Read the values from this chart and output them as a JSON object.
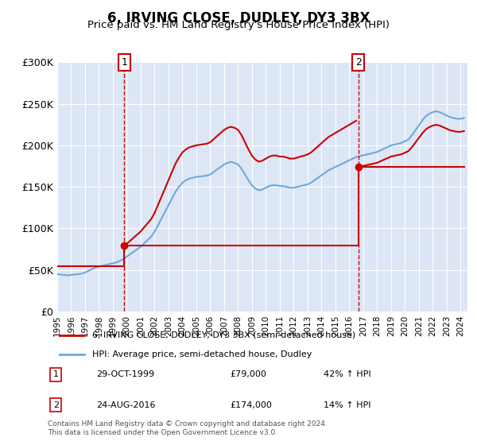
{
  "title": "6, IRVING CLOSE, DUDLEY, DY3 3BX",
  "subtitle": "Price paid vs. HM Land Registry's House Price Index (HPI)",
  "xlabel": "",
  "ylabel": "",
  "ylim": [
    0,
    300000
  ],
  "yticks": [
    0,
    50000,
    100000,
    150000,
    200000,
    250000,
    300000
  ],
  "ytick_labels": [
    "£0",
    "£50K",
    "£100K",
    "£150K",
    "£200K",
    "£250K",
    "£300K"
  ],
  "xlim_start": 1995.0,
  "xlim_end": 2024.5,
  "plot_bg_color": "#dce6f5",
  "fig_bg_color": "#ffffff",
  "grid_color": "#ffffff",
  "sale1_year": 1999.83,
  "sale1_price": 79000,
  "sale1_label": "29-OCT-1999",
  "sale1_amount": "£79,000",
  "sale1_hpi": "42% ↑ HPI",
  "sale2_year": 2016.65,
  "sale2_price": 174000,
  "sale2_label": "24-AUG-2016",
  "sale2_amount": "£174,000",
  "sale2_hpi": "14% ↑ HPI",
  "hpi_color": "#6fa8dc",
  "price_color": "#cc0000",
  "marker_color": "#cc0000",
  "legend_label1": "6, IRVING CLOSE, DUDLEY, DY3 3BX (semi-detached house)",
  "legend_label2": "HPI: Average price, semi-detached house, Dudley",
  "footnote": "Contains HM Land Registry data © Crown copyright and database right 2024.\nThis data is licensed under the Open Government Licence v3.0.",
  "hpi_data_x": [
    1995.0,
    1995.25,
    1995.5,
    1995.75,
    1996.0,
    1996.25,
    1996.5,
    1996.75,
    1997.0,
    1997.25,
    1997.5,
    1997.75,
    1998.0,
    1998.25,
    1998.5,
    1998.75,
    1999.0,
    1999.25,
    1999.5,
    1999.75,
    2000.0,
    2000.25,
    2000.5,
    2000.75,
    2001.0,
    2001.25,
    2001.5,
    2001.75,
    2002.0,
    2002.25,
    2002.5,
    2002.75,
    2003.0,
    2003.25,
    2003.5,
    2003.75,
    2004.0,
    2004.25,
    2004.5,
    2004.75,
    2005.0,
    2005.25,
    2005.5,
    2005.75,
    2006.0,
    2006.25,
    2006.5,
    2006.75,
    2007.0,
    2007.25,
    2007.5,
    2007.75,
    2008.0,
    2008.25,
    2008.5,
    2008.75,
    2009.0,
    2009.25,
    2009.5,
    2009.75,
    2010.0,
    2010.25,
    2010.5,
    2010.75,
    2011.0,
    2011.25,
    2011.5,
    2011.75,
    2012.0,
    2012.25,
    2012.5,
    2012.75,
    2013.0,
    2013.25,
    2013.5,
    2013.75,
    2014.0,
    2014.25,
    2014.5,
    2014.75,
    2015.0,
    2015.25,
    2015.5,
    2015.75,
    2016.0,
    2016.25,
    2016.5,
    2016.75,
    2017.0,
    2017.25,
    2017.5,
    2017.75,
    2018.0,
    2018.25,
    2018.5,
    2018.75,
    2019.0,
    2019.25,
    2019.5,
    2019.75,
    2020.0,
    2020.25,
    2020.5,
    2020.75,
    2021.0,
    2021.25,
    2021.5,
    2021.75,
    2022.0,
    2022.25,
    2022.5,
    2022.75,
    2023.0,
    2023.25,
    2023.5,
    2023.75,
    2024.0,
    2024.25
  ],
  "hpi_data_y": [
    45000,
    44500,
    44000,
    43500,
    44000,
    44500,
    45000,
    45500,
    47000,
    49000,
    51000,
    53000,
    54000,
    55000,
    56000,
    57000,
    58000,
    59000,
    61000,
    63000,
    66000,
    69000,
    72000,
    75000,
    78000,
    82000,
    86000,
    90000,
    96000,
    104000,
    112000,
    120000,
    128000,
    136000,
    144000,
    150000,
    155000,
    158000,
    160000,
    161000,
    162000,
    162500,
    163000,
    163500,
    165000,
    168000,
    171000,
    174000,
    177000,
    179000,
    180000,
    179000,
    177000,
    172000,
    165000,
    158000,
    152000,
    148000,
    146000,
    147000,
    149000,
    151000,
    152000,
    152000,
    151000,
    151000,
    150000,
    149000,
    149000,
    150000,
    151000,
    152000,
    153000,
    155000,
    158000,
    161000,
    164000,
    167000,
    170000,
    172000,
    174000,
    176000,
    178000,
    180000,
    182000,
    184000,
    186000,
    187000,
    188000,
    189000,
    190000,
    191000,
    192000,
    194000,
    196000,
    198000,
    200000,
    201000,
    202000,
    203000,
    205000,
    207000,
    212000,
    218000,
    224000,
    230000,
    235000,
    238000,
    240000,
    241000,
    240000,
    238000,
    236000,
    234000,
    233000,
    232000,
    232000,
    233000
  ],
  "price_data_x": [
    1995.0,
    1999.83,
    1999.83,
    2016.65,
    2016.65,
    2024.25
  ],
  "price_data_y": [
    55000,
    55000,
    79000,
    79000,
    174000,
    174000
  ]
}
